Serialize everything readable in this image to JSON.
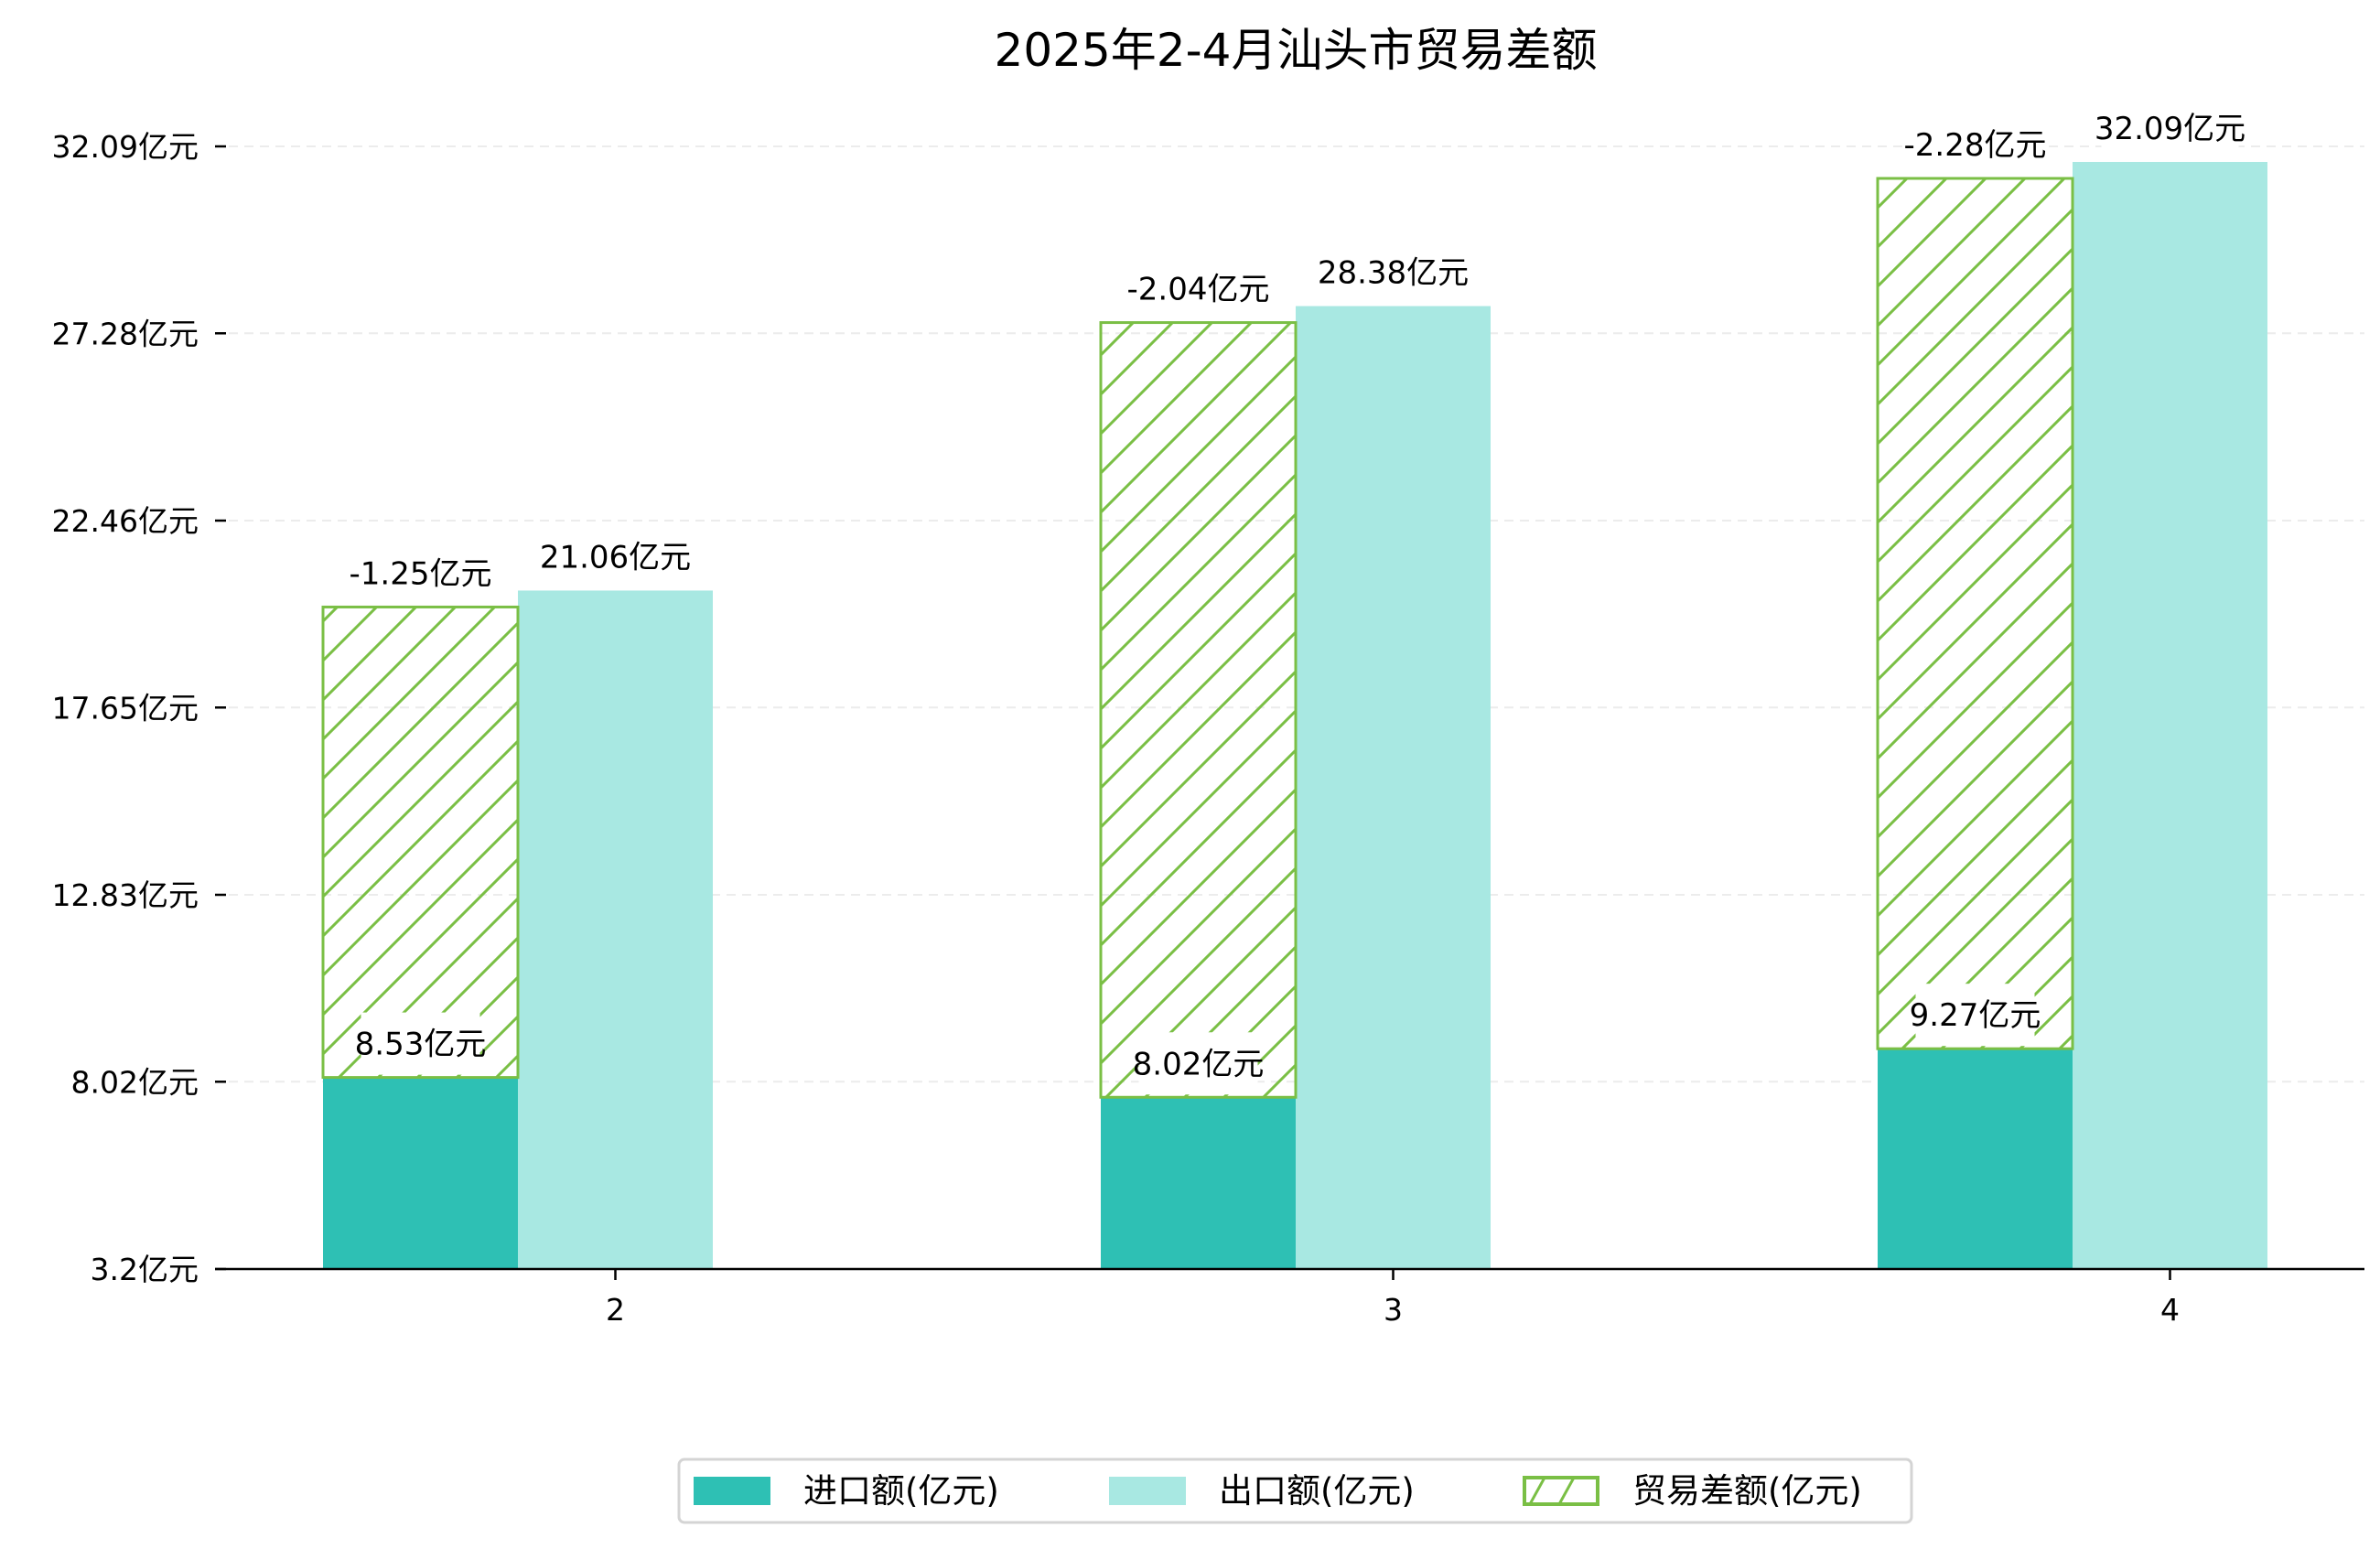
{
  "chart_data": {
    "type": "bar",
    "title": "2025年2-4月汕头市贸易差额",
    "xlabel": "",
    "ylabel": "",
    "categories": [
      "2",
      "3",
      "4"
    ],
    "yticks": [
      "3.2亿元",
      "8.02亿元",
      "12.83亿元",
      "17.65亿元",
      "22.46亿元",
      "27.28亿元",
      "32.09亿元"
    ],
    "ytick_values": [
      3.2,
      8.02,
      12.83,
      17.65,
      22.46,
      27.28,
      32.09
    ],
    "ylim": [
      3.2,
      33.5
    ],
    "grid": true,
    "legend_position": "bottom-center",
    "series": [
      {
        "name": "进口额(亿元)",
        "values": [
          8.53,
          8.02,
          9.27
        ],
        "labels": [
          "8.53亿元",
          "8.02亿元",
          "9.27亿元"
        ],
        "color": "#2ec0b4"
      },
      {
        "name": "出口额(亿元)",
        "values": [
          21.06,
          28.38,
          32.09
        ],
        "labels": [
          "21.06亿元",
          "28.38亿元",
          "32.09亿元"
        ],
        "color": "#a8e8e2"
      },
      {
        "name": "贸易差额(亿元)",
        "values": [
          -1.25,
          -2.04,
          -2.28
        ],
        "labels": [
          "-1.25亿元",
          "-2.04亿元",
          "-2.28亿元"
        ],
        "color": "#7abf45",
        "style": "hatched"
      }
    ]
  }
}
